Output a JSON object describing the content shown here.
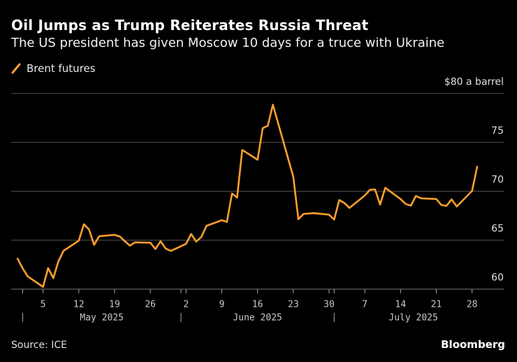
{
  "header": {
    "title": "Oil Jumps as Trump Reiterates Russia Threat",
    "subtitle": "The US president has given Moscow 10 days for a truce with Ukraine"
  },
  "footer": {
    "source": "Source: ICE",
    "logo": "Bloomberg"
  },
  "chart_data": {
    "type": "line",
    "title": "Oil Jumps as Trump Reiterates Russia Threat",
    "subtitle": "The US president has given Moscow 10 days for a truce with Ukraine",
    "unit_label": "$80 a barrel",
    "ylim": [
      60,
      80
    ],
    "y_ticks": [
      60,
      65,
      70,
      75,
      80
    ],
    "y_tick_labels": [
      "60",
      "65",
      "70",
      "75",
      "$80 a barrel"
    ],
    "x_range": [
      "2025-04-30",
      "2025-08-03"
    ],
    "x_ticks": [
      {
        "date": "2025-05-05",
        "label": "5"
      },
      {
        "date": "2025-05-12",
        "label": "12"
      },
      {
        "date": "2025-05-19",
        "label": "19"
      },
      {
        "date": "2025-05-26",
        "label": "26"
      },
      {
        "date": "2025-06-02",
        "label": "2"
      },
      {
        "date": "2025-06-09",
        "label": "9"
      },
      {
        "date": "2025-06-16",
        "label": "16"
      },
      {
        "date": "2025-06-23",
        "label": "23"
      },
      {
        "date": "2025-06-30",
        "label": "30"
      },
      {
        "date": "2025-07-07",
        "label": "7"
      },
      {
        "date": "2025-07-14",
        "label": "14"
      },
      {
        "date": "2025-07-21",
        "label": "21"
      },
      {
        "date": "2025-07-28",
        "label": "28"
      }
    ],
    "months": [
      {
        "start": "2025-05-01",
        "label": "May 2025"
      },
      {
        "start": "2025-06-01",
        "label": "June 2025"
      },
      {
        "start": "2025-07-01",
        "label": "July 2025"
      }
    ],
    "grid": true,
    "legend_position": "top-left",
    "series": [
      {
        "name": "Brent futures",
        "color": "#ff9f2e",
        "points": [
          [
            "2025-04-30",
            63.12
          ],
          [
            "2025-05-01",
            62.13
          ],
          [
            "2025-05-02",
            61.29
          ],
          [
            "2025-05-05",
            60.23
          ],
          [
            "2025-05-06",
            62.15
          ],
          [
            "2025-05-07",
            61.12
          ],
          [
            "2025-05-08",
            62.84
          ],
          [
            "2025-05-09",
            63.91
          ],
          [
            "2025-05-12",
            64.96
          ],
          [
            "2025-05-13",
            66.63
          ],
          [
            "2025-05-14",
            66.09
          ],
          [
            "2025-05-15",
            64.53
          ],
          [
            "2025-05-16",
            65.41
          ],
          [
            "2025-05-19",
            65.54
          ],
          [
            "2025-05-20",
            65.38
          ],
          [
            "2025-05-21",
            64.91
          ],
          [
            "2025-05-22",
            64.44
          ],
          [
            "2025-05-23",
            64.78
          ],
          [
            "2025-05-26",
            64.74
          ],
          [
            "2025-05-27",
            64.09
          ],
          [
            "2025-05-28",
            64.9
          ],
          [
            "2025-05-29",
            64.15
          ],
          [
            "2025-05-30",
            63.9
          ],
          [
            "2025-06-02",
            64.63
          ],
          [
            "2025-06-03",
            65.63
          ],
          [
            "2025-06-04",
            64.86
          ],
          [
            "2025-06-05",
            65.34
          ],
          [
            "2025-06-06",
            66.47
          ],
          [
            "2025-06-09",
            67.04
          ],
          [
            "2025-06-10",
            66.87
          ],
          [
            "2025-06-11",
            69.77
          ],
          [
            "2025-06-12",
            69.36
          ],
          [
            "2025-06-13",
            74.23
          ],
          [
            "2025-06-16",
            73.23
          ],
          [
            "2025-06-17",
            76.45
          ],
          [
            "2025-06-18",
            76.7
          ],
          [
            "2025-06-19",
            78.85
          ],
          [
            "2025-06-20",
            77.01
          ],
          [
            "2025-06-23",
            71.48
          ],
          [
            "2025-06-24",
            67.14
          ],
          [
            "2025-06-25",
            67.68
          ],
          [
            "2025-06-26",
            67.73
          ],
          [
            "2025-06-27",
            67.77
          ],
          [
            "2025-06-30",
            67.61
          ],
          [
            "2025-07-01",
            67.11
          ],
          [
            "2025-07-02",
            69.11
          ],
          [
            "2025-07-03",
            68.8
          ],
          [
            "2025-07-04",
            68.3
          ],
          [
            "2025-07-07",
            69.58
          ],
          [
            "2025-07-08",
            70.15
          ],
          [
            "2025-07-09",
            70.19
          ],
          [
            "2025-07-10",
            68.64
          ],
          [
            "2025-07-11",
            70.36
          ],
          [
            "2025-07-14",
            69.21
          ],
          [
            "2025-07-15",
            68.71
          ],
          [
            "2025-07-16",
            68.52
          ],
          [
            "2025-07-17",
            69.52
          ],
          [
            "2025-07-18",
            69.28
          ],
          [
            "2025-07-21",
            69.21
          ],
          [
            "2025-07-22",
            68.59
          ],
          [
            "2025-07-23",
            68.51
          ],
          [
            "2025-07-24",
            69.18
          ],
          [
            "2025-07-25",
            68.44
          ],
          [
            "2025-07-28",
            70.04
          ],
          [
            "2025-07-29",
            72.51
          ]
        ]
      }
    ]
  }
}
